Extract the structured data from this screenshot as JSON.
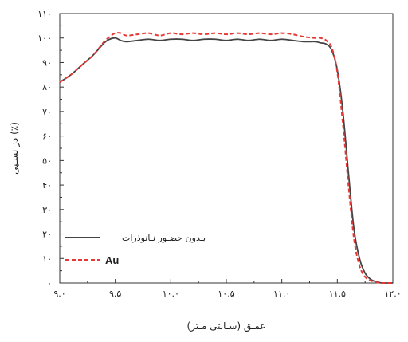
{
  "chart_data": {
    "type": "line",
    "xlabel": "عمـق (سـانتی مـتر)",
    "ylabel": "(٪) دز نسـبی",
    "xlim": [
      9.0,
      12.0
    ],
    "ylim": [
      0,
      110
    ],
    "x_ticks": [
      9.0,
      9.5,
      10.0,
      10.5,
      11.0,
      11.5,
      12.0
    ],
    "x_tick_labels": [
      "۹.۰",
      "۹.۵",
      "۱۰.۰",
      "۱۰.۵",
      "۱۱.۰",
      "۱۱.۵",
      "۱۲.۰"
    ],
    "y_ticks": [
      0,
      10,
      20,
      30,
      40,
      50,
      60,
      70,
      80,
      90,
      100,
      110
    ],
    "y_tick_labels": [
      "۰",
      "۱۰",
      "۲۰",
      "۳۰",
      "۴۰",
      "۵۰",
      "۶۰",
      "۷۰",
      "۸۰",
      "۹۰",
      "۱۰۰",
      "۱۱۰"
    ],
    "legend_position": "bottom-left",
    "grid": false,
    "series": [
      {
        "name": "بـدون حضـور نـانوذرات",
        "color": "#444444",
        "style": "solid",
        "x": [
          9.0,
          9.1,
          9.2,
          9.3,
          9.4,
          9.45,
          9.5,
          9.55,
          9.6,
          9.7,
          9.8,
          9.9,
          10.0,
          10.1,
          10.2,
          10.3,
          10.4,
          10.5,
          10.6,
          10.7,
          10.8,
          10.9,
          11.0,
          11.1,
          11.2,
          11.3,
          11.35,
          11.4,
          11.45,
          11.5,
          11.55,
          11.6,
          11.65,
          11.7,
          11.75,
          11.8,
          11.85,
          11.9,
          11.95,
          12.0
        ],
        "y": [
          82,
          85,
          89,
          93,
          98,
          99.5,
          100,
          99,
          98.5,
          99,
          99.5,
          99,
          99.5,
          99.5,
          99,
          99.5,
          99.5,
          99,
          99.5,
          99,
          99.5,
          99,
          99.5,
          99,
          98.5,
          98.5,
          98,
          97.5,
          95,
          87,
          70,
          45,
          22,
          10,
          4,
          1.5,
          0.5,
          0,
          0,
          0
        ]
      },
      {
        "name": "Au",
        "color": "#e53935",
        "style": "dashed",
        "x": [
          9.0,
          9.1,
          9.2,
          9.3,
          9.4,
          9.45,
          9.5,
          9.55,
          9.6,
          9.7,
          9.8,
          9.9,
          10.0,
          10.1,
          10.2,
          10.3,
          10.4,
          10.5,
          10.6,
          10.7,
          10.8,
          10.9,
          11.0,
          11.1,
          11.2,
          11.3,
          11.35,
          11.4,
          11.45,
          11.5,
          11.55,
          11.6,
          11.65,
          11.7,
          11.75,
          11.8,
          11.85,
          11.9,
          11.95,
          12.0
        ],
        "y": [
          82,
          85,
          89,
          93,
          98.5,
          100.5,
          102,
          102,
          101,
          101.5,
          102,
          101,
          102,
          101.5,
          102,
          101.5,
          102,
          101.5,
          102,
          101.5,
          102,
          101.5,
          102,
          101.5,
          100.5,
          100,
          100,
          99,
          96,
          86,
          65,
          40,
          18,
          7,
          2.5,
          1,
          0.3,
          0,
          0,
          0
        ]
      }
    ]
  }
}
